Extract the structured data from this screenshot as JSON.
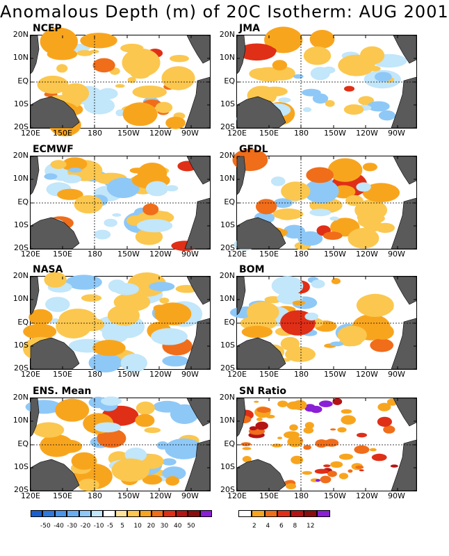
{
  "title": "Anomalous Depth (m) of 20C Isotherm: AUG 2001",
  "panels": [
    {
      "name": "NCEP"
    },
    {
      "name": "JMA"
    },
    {
      "name": "ECMWF"
    },
    {
      "name": "GFDL"
    },
    {
      "name": "NASA"
    },
    {
      "name": "BOM"
    },
    {
      "name": "ENS. Mean"
    },
    {
      "name": "SN Ratio"
    }
  ],
  "lat_labels": [
    "20N",
    "10N",
    "EQ",
    "10S",
    "20S"
  ],
  "lon_labels": [
    "120E",
    "150E",
    "180",
    "150W",
    "120W",
    "90W"
  ],
  "anomaly_scale": {
    "labels": [
      "-50",
      "-40",
      "-30",
      "-20",
      "-10",
      "-5",
      "5",
      "10",
      "20",
      "30",
      "40",
      "50"
    ],
    "colors": [
      "#1a5fcf",
      "#2f78de",
      "#4b95ea",
      "#6aaef2",
      "#8ec8f7",
      "#c2e6fa",
      "#ffffff",
      "#fde49a",
      "#fbc74e",
      "#f8a51e",
      "#f06d1a",
      "#e02f17",
      "#b51414",
      "#8b0c0c",
      "#8a1fd6"
    ]
  },
  "sn_scale": {
    "labels": [
      "2",
      "4",
      "6",
      "8",
      "12"
    ],
    "colors": [
      "#ffffff",
      "#f8a51e",
      "#f06d1a",
      "#e02f17",
      "#b51414",
      "#8b0c0c",
      "#8a1fd6"
    ]
  }
}
